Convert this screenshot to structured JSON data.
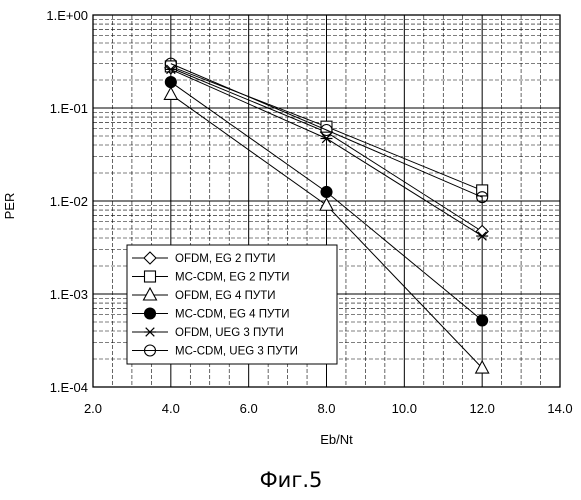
{
  "chart_data": {
    "type": "line",
    "xlabel": "Eb/Nt",
    "ylabel": "PER",
    "xlim": [
      2.0,
      14.0
    ],
    "ylim": [
      0.0001,
      1.0
    ],
    "yscale": "log",
    "grid": true,
    "legend_position": "bottom-left",
    "x_ticks": [
      "2.0",
      "4.0",
      "6.0",
      "8.0",
      "10.0",
      "12.0",
      "14.0"
    ],
    "y_ticks": [
      "1.E-04",
      "1.E-03",
      "1.E-02",
      "1.E-01",
      "1.E+00"
    ],
    "x": [
      4.0,
      8.0,
      12.0
    ],
    "series": [
      {
        "name": "OFDM, EG 2 ПУТИ",
        "marker": "diamond",
        "values": [
          0.27,
          0.055,
          0.0047
        ]
      },
      {
        "name": "MC-CDM, EG 2 ПУТИ",
        "marker": "square",
        "values": [
          0.28,
          0.063,
          0.013
        ]
      },
      {
        "name": "OFDM, EG 4 ПУТИ",
        "marker": "triangle",
        "values": [
          0.14,
          0.009,
          0.00016
        ]
      },
      {
        "name": "MC-CDM, EG 4 ПУТИ",
        "marker": "filled-circle",
        "values": [
          0.19,
          0.0125,
          0.00052
        ]
      },
      {
        "name": "OFDM, UEG 3 ПУТИ",
        "marker": "asterisk",
        "values": [
          0.26,
          0.047,
          0.0042
        ]
      },
      {
        "name": "MC-CDM, UEG 3 ПУТИ",
        "marker": "open-circle",
        "values": [
          0.3,
          0.058,
          0.011
        ]
      }
    ]
  },
  "caption": "Фиг.5"
}
